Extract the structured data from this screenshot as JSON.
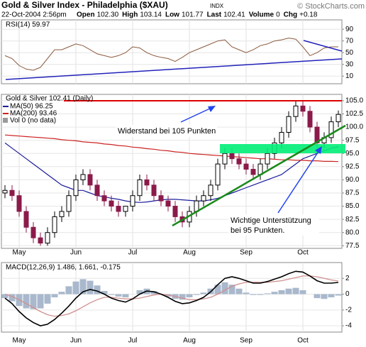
{
  "header": {
    "title": "Gold & Silver Index - Philadelphia ($XAU)",
    "exchange": "INDX",
    "copyright": "© StockCharts.com",
    "date": "22-Oct-2004 2:56pm",
    "quote": [
      {
        "label": "Open",
        "value": "102.30"
      },
      {
        "label": "High",
        "value": "103.14"
      },
      {
        "label": "Low",
        "value": "101.77"
      },
      {
        "label": "Last",
        "value": "102.41"
      },
      {
        "label": "Volume",
        "value": "0"
      },
      {
        "label": "Chg",
        "value": "+0.18"
      }
    ]
  },
  "chart_data": [
    {
      "type": "line",
      "series": [
        {
          "name": "RSI(14) 59.97",
          "color": "#8b5a3c",
          "values": [
            45,
            40,
            28,
            22,
            20,
            25,
            40,
            55,
            55,
            60,
            65,
            62,
            55,
            48,
            45,
            42,
            45,
            50,
            60,
            58,
            50,
            45,
            42,
            40,
            35,
            42,
            50,
            55,
            60,
            65,
            70,
            72,
            60,
            55,
            50,
            55,
            62,
            65,
            70,
            72,
            75,
            73,
            60,
            45,
            50,
            58,
            60,
            59.97
          ]
        }
      ],
      "ylim": [
        -3,
        106
      ],
      "yticks": [
        10,
        30,
        50,
        70,
        90
      ],
      "grid": true
    },
    {
      "type": "candlestick",
      "categories": [
        null,
        null,
        "May",
        null,
        null,
        null,
        null,
        null,
        null,
        null,
        "Jun",
        null,
        null,
        null,
        null,
        null,
        null,
        null,
        "Jul",
        null,
        null,
        null,
        null,
        null,
        null,
        null,
        "Aug",
        null,
        null,
        null,
        null,
        null,
        null,
        null,
        "Sep",
        null,
        null,
        null,
        null,
        null,
        null,
        null,
        "Oct",
        null,
        null,
        null,
        null,
        null
      ],
      "name": "Gold & Silver 102.41 (Daily)",
      "volume_label": "Vol 0 (no data)",
      "open": [
        87.5,
        88,
        87,
        84,
        81,
        79,
        78,
        80,
        83,
        84,
        87,
        90,
        91,
        89,
        87,
        86,
        85,
        84,
        85,
        87,
        90,
        89,
        87,
        86,
        85,
        83,
        82,
        84,
        86,
        87,
        89,
        93,
        95,
        94,
        93,
        92,
        91,
        93,
        95,
        97,
        99,
        102,
        104,
        103,
        100,
        97,
        98,
        101
      ],
      "high": [
        89,
        89,
        88,
        85,
        82,
        80,
        81,
        84,
        85,
        88,
        91,
        92,
        92,
        90,
        88,
        87,
        86,
        85,
        88,
        91,
        91,
        90,
        88,
        87,
        86,
        84,
        85,
        87,
        88,
        90,
        94,
        96,
        96,
        95,
        94,
        93,
        94,
        96,
        98,
        100,
        103,
        105,
        105,
        104,
        101,
        99,
        102,
        103.14
      ],
      "low": [
        86.5,
        86,
        83,
        80,
        78,
        77.5,
        77.5,
        79,
        82,
        83,
        86,
        89,
        88,
        86,
        85,
        84,
        83,
        83,
        84,
        86,
        88,
        86,
        85,
        84,
        82,
        81,
        81,
        83,
        85,
        86,
        88,
        92,
        93,
        92,
        91,
        90,
        90,
        92,
        94,
        96,
        98,
        101,
        102,
        99,
        96,
        96,
        97,
        100
      ],
      "close": [
        88,
        87,
        84,
        81,
        79,
        78,
        80,
        83,
        84,
        87,
        90,
        91,
        89,
        87,
        86,
        85,
        84,
        85,
        87,
        90,
        89,
        87,
        86,
        85,
        83,
        82,
        84,
        86,
        87,
        89,
        93,
        95,
        94,
        93,
        92,
        91,
        93,
        95,
        97,
        99,
        102,
        104,
        103,
        100,
        97,
        98,
        101,
        102.41
      ],
      "series": [
        {
          "name": "MA(50) 96.25",
          "color": "#1c1c9c",
          "values": [
            97,
            96,
            95,
            94,
            93,
            92,
            91,
            90,
            89,
            88.5,
            88,
            88,
            87.5,
            87,
            86.8,
            86.5,
            86.3,
            86,
            85.8,
            85.7,
            85.8,
            86,
            86.2,
            86.3,
            86.3,
            86.2,
            86.1,
            86,
            86,
            86.2,
            86.5,
            87,
            87.5,
            88,
            88.5,
            89,
            89.5,
            90,
            90.5,
            91,
            92,
            93,
            94,
            94.5,
            95,
            95.5,
            96,
            96.25
          ]
        },
        {
          "name": "MA(200) 93.46",
          "color": "#cc2222",
          "values": [
            98.5,
            98.4,
            98.3,
            98.2,
            98.1,
            98,
            97.9,
            97.8,
            97.6,
            97.5,
            97.4,
            97.2,
            97.1,
            97,
            96.8,
            96.7,
            96.5,
            96.4,
            96.2,
            96.1,
            95.9,
            95.8,
            95.6,
            95.5,
            95.3,
            95.2,
            95,
            94.9,
            94.8,
            94.7,
            94.6,
            94.5,
            94.4,
            94.3,
            94.2,
            94.1,
            94,
            94,
            93.9,
            93.8,
            93.8,
            93.7,
            93.7,
            93.6,
            93.6,
            93.5,
            93.5,
            93.46
          ]
        }
      ],
      "up_color": "#000000",
      "down_color": "#8b1a4a",
      "ylim": [
        77,
        106.2
      ],
      "yticks": [
        77.5,
        {
          "value": 80,
          "label": "80.0"
        },
        82.5,
        {
          "value": 85,
          "label": "85.0"
        },
        87.5,
        {
          "value": 90,
          "label": "90.0"
        },
        92.5,
        {
          "value": 95,
          "label": "95.0"
        },
        97.5,
        {
          "value": 100,
          "label": "100.0"
        },
        102.5,
        {
          "value": 105,
          "label": "105.0"
        }
      ],
      "grid": true,
      "annotations": [
        "Widerstand bei 105 Punkten",
        "Wichtige Unterstützung",
        "bei 95 Punkten."
      ]
    },
    {
      "type": "macd",
      "title": "MACD(12,26,9) 1.486, 1.661, -0.175",
      "macd": [
        -0.5,
        -1.2,
        -2.2,
        -3,
        -3.6,
        -4,
        -3.8,
        -3.2,
        -2.4,
        -1.5,
        -0.5,
        0.3,
        0.6,
        0.4,
        0,
        -0.5,
        -0.8,
        -1,
        -0.6,
        0,
        0.4,
        0.3,
        0,
        -0.4,
        -0.9,
        -1.2,
        -1.1,
        -0.8,
        -0.4,
        0.3,
        1.2,
        2,
        2.2,
        2,
        1.7,
        1.4,
        1.4,
        1.6,
        1.9,
        2.2,
        2.6,
        2.9,
        2.8,
        2.3,
        1.7,
        1.4,
        1.4,
        1.486
      ],
      "signal": [
        0,
        -0.3,
        -0.7,
        -1.2,
        -1.7,
        -2.2,
        -2.6,
        -2.8,
        -2.7,
        -2.5,
        -2.1,
        -1.6,
        -1.1,
        -0.7,
        -0.4,
        -0.4,
        -0.5,
        -0.6,
        -0.6,
        -0.5,
        -0.3,
        -0.1,
        0,
        -0.1,
        -0.3,
        -0.5,
        -0.7,
        -0.7,
        -0.6,
        -0.4,
        0,
        0.5,
        1,
        1.3,
        1.5,
        1.5,
        1.5,
        1.5,
        1.6,
        1.7,
        1.9,
        2.1,
        2.3,
        2.3,
        2.2,
        2,
        1.8,
        1.661
      ],
      "histogram": [
        -0.5,
        -0.9,
        -1.5,
        -1.8,
        -1.9,
        -1.8,
        -1.2,
        -0.4,
        0.3,
        1,
        1.6,
        1.9,
        1.7,
        1.1,
        0.4,
        -0.1,
        -0.3,
        -0.4,
        0,
        0.5,
        0.7,
        0.4,
        0,
        -0.3,
        -0.6,
        -0.7,
        -0.4,
        -0.1,
        0.2,
        0.7,
        1.2,
        1.5,
        1.2,
        0.7,
        0.2,
        -0.1,
        -0.1,
        0.1,
        0.3,
        0.5,
        0.7,
        0.8,
        0.5,
        0,
        -0.5,
        -0.6,
        -0.4,
        -0.175
      ],
      "macd_color": "#000000",
      "signal_color": "#d09090",
      "histogram_color": "#a9b8cc",
      "ylim": [
        -4.8,
        4
      ],
      "yticks": [
        -4,
        -2,
        0,
        2
      ],
      "grid": true
    }
  ]
}
